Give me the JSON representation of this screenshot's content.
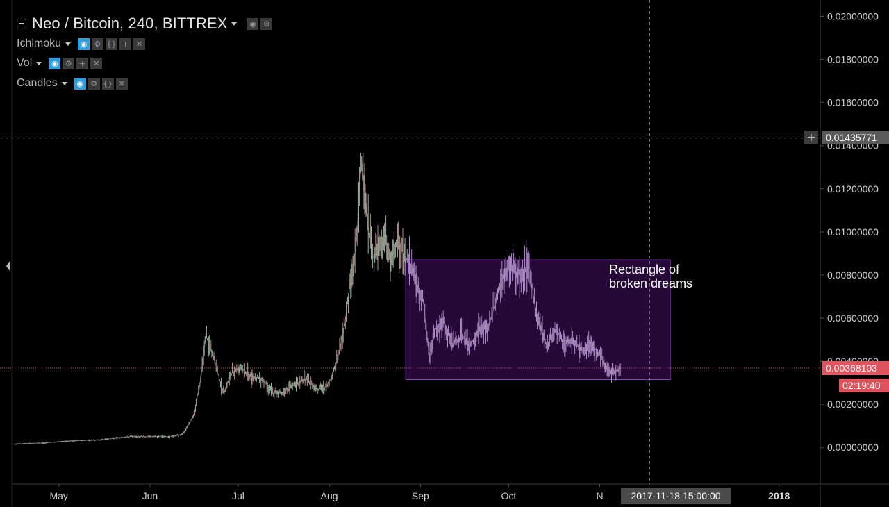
{
  "legend": {
    "title": "Neo / Bitcoin, 240, BITTREX",
    "indicators": [
      {
        "label": "Ichimoku",
        "buttons": [
          "eye-icon",
          "gear-icon",
          "braces-icon",
          "plus-icon",
          "close-icon"
        ]
      },
      {
        "label": "Vol",
        "buttons": [
          "eye-icon",
          "gear-icon",
          "plus-icon",
          "close-icon"
        ]
      },
      {
        "label": "Candles",
        "buttons": [
          "eye-icon",
          "gear-icon",
          "braces-icon",
          "close-icon"
        ]
      }
    ]
  },
  "annotation": {
    "line1": "Rectangle of",
    "line2": "broken dreams"
  },
  "price_tags": {
    "crosshair": "0.01435771",
    "last": "0.00368103",
    "countdown": "02:19:40"
  },
  "time_tag": "2017-11-18 15:00:00",
  "colors": {
    "background": "#000000",
    "candles": "#8c8c8c",
    "rectangle_fill": "#2a0a3c",
    "rectangle_border": "#8a3fc4",
    "last_price": "#e0545e",
    "eye_active": "#2e9fdc"
  },
  "chart_data": {
    "type": "line",
    "title": "Neo / Bitcoin, 240, BITTREX",
    "yticks": [
      "0.02000000",
      "0.01800000",
      "0.01600000",
      "0.01400000",
      "0.01200000",
      "0.01000000",
      "0.00800000",
      "0.00600000",
      "0.00400000",
      "0.00200000",
      "0.00000000"
    ],
    "ylim": [
      -0.0017,
      0.0205
    ],
    "xticks": [
      "May",
      "Jun",
      "Jul",
      "Aug",
      "Sep",
      "Oct",
      "N",
      "2018"
    ],
    "xlim": [
      "2017-04-15",
      "2018-01-15"
    ],
    "series": [
      {
        "x": [
          "2017-04-15",
          "2017-04-25",
          "2017-05-05",
          "2017-05-15",
          "2017-05-25",
          "2017-06-01",
          "2017-06-08",
          "2017-06-12",
          "2017-06-16",
          "2017-06-18",
          "2017-06-20",
          "2017-06-23",
          "2017-06-26",
          "2017-06-29",
          "2017-07-02",
          "2017-07-05",
          "2017-07-09",
          "2017-07-13",
          "2017-07-17",
          "2017-07-20",
          "2017-07-24",
          "2017-07-28",
          "2017-07-31",
          "2017-08-02",
          "2017-08-04",
          "2017-08-06",
          "2017-08-08",
          "2017-08-10",
          "2017-08-12",
          "2017-08-14",
          "2017-08-16",
          "2017-08-18",
          "2017-08-20",
          "2017-08-22",
          "2017-08-24",
          "2017-08-27",
          "2017-08-29",
          "2017-08-31",
          "2017-09-02",
          "2017-09-04",
          "2017-09-06",
          "2017-09-09",
          "2017-09-12",
          "2017-09-15",
          "2017-09-18",
          "2017-09-21",
          "2017-09-24",
          "2017-09-27",
          "2017-09-30",
          "2017-10-02",
          "2017-10-04",
          "2017-10-06",
          "2017-10-08",
          "2017-10-10",
          "2017-10-12",
          "2017-10-14",
          "2017-10-17",
          "2017-10-20",
          "2017-10-23",
          "2017-10-26",
          "2017-10-29",
          "2017-11-01",
          "2017-11-03",
          "2017-11-05",
          "2017-11-06",
          "2017-11-08"
        ],
        "values": [
          0.00015,
          0.0002,
          0.0003,
          0.00035,
          0.0005,
          0.0005,
          0.0005,
          0.0006,
          0.0015,
          0.003,
          0.0052,
          0.004,
          0.0025,
          0.0035,
          0.0037,
          0.0033,
          0.0032,
          0.0025,
          0.0026,
          0.0029,
          0.0032,
          0.0027,
          0.0028,
          0.0033,
          0.0042,
          0.0055,
          0.0075,
          0.0092,
          0.0135,
          0.0105,
          0.0088,
          0.0093,
          0.0097,
          0.0085,
          0.0095,
          0.0088,
          0.0084,
          0.0075,
          0.0068,
          0.0042,
          0.0055,
          0.0058,
          0.0048,
          0.0052,
          0.0047,
          0.0056,
          0.0055,
          0.007,
          0.0082,
          0.0085,
          0.008,
          0.0082,
          0.0084,
          0.0065,
          0.0055,
          0.0047,
          0.0055,
          0.0048,
          0.005,
          0.0045,
          0.0048,
          0.0043,
          0.0038,
          0.0034,
          0.0035,
          0.00368103
        ]
      }
    ],
    "horizontal_lines": [
      {
        "y": 0.01435771,
        "style": "dashed",
        "color": "#888888"
      },
      {
        "y": 0.00368103,
        "style": "dotted",
        "color": "#e0545e"
      }
    ],
    "vertical_lines": [
      {
        "x": "2017-11-18",
        "style": "dashed",
        "color": "#777777"
      }
    ],
    "rectangle": {
      "x0": "2017-08-27",
      "x1": "2017-11-25",
      "y0": 0.00315,
      "y1": 0.0087
    },
    "grid": false
  }
}
